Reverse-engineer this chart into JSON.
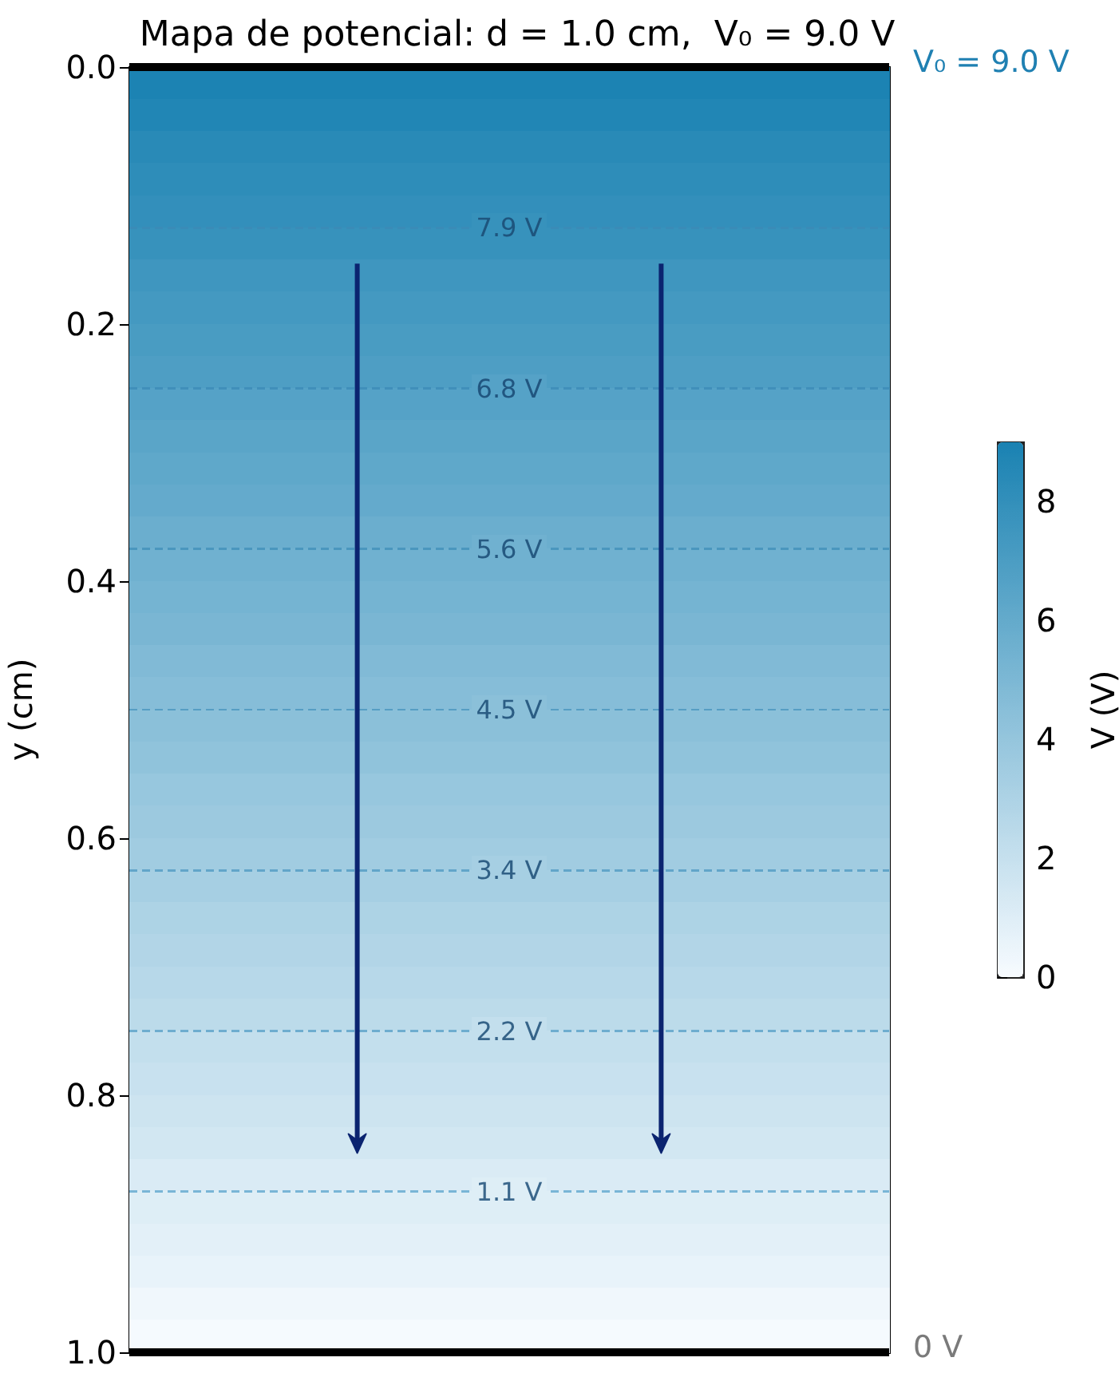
{
  "chart_data": {
    "type": "heatmap",
    "title": "Mapa de potencial: d = 1.0 cm,  V₀ = 9.0 V",
    "ylabel": "y (cm)",
    "clabel": "V (V)",
    "categories": [
      null
    ],
    "cells": [
      [
        8.9
      ],
      [
        8.7
      ],
      [
        8.4
      ],
      [
        8.2
      ],
      [
        8.0
      ],
      [
        7.8
      ],
      [
        7.5
      ],
      [
        7.3
      ],
      [
        7.1
      ],
      [
        6.9
      ],
      [
        6.6
      ],
      [
        6.4
      ],
      [
        6.2
      ],
      [
        6.0
      ],
      [
        5.7
      ],
      [
        5.5
      ],
      [
        5.3
      ],
      [
        5.1
      ],
      [
        4.8
      ],
      [
        4.6
      ],
      [
        4.4
      ],
      [
        4.2
      ],
      [
        3.9
      ],
      [
        3.7
      ],
      [
        3.5
      ],
      [
        3.3
      ],
      [
        3.0
      ],
      [
        2.8
      ],
      [
        2.6
      ],
      [
        2.4
      ],
      [
        2.1
      ],
      [
        1.9
      ],
      [
        1.7
      ],
      [
        1.5
      ],
      [
        1.2
      ],
      [
        1.0
      ],
      [
        0.8
      ],
      [
        0.6
      ],
      [
        0.3
      ],
      [
        0.1
      ]
    ],
    "clim": [
      0,
      9
    ],
    "cticks": [
      0,
      2,
      4,
      6,
      8
    ],
    "ylim": [
      1,
      0
    ],
    "yticks": [
      {
        "value": 0,
        "label": "0.0"
      },
      0.2,
      0.4,
      0.6,
      0.8,
      {
        "value": 1,
        "label": "1.0"
      }
    ],
    "ref_lines": [
      {
        "axis": "y",
        "value": 0,
        "color": "#000000",
        "line_style": "solid"
      },
      {
        "axis": "y",
        "value": 1,
        "color": "#000000",
        "line_style": "solid"
      },
      {
        "axis": "y",
        "value": 0.125,
        "label": "7.9 V",
        "color": "#3a8bb7",
        "line_style": "dashed"
      },
      {
        "axis": "y",
        "value": 0.25,
        "label": "6.8 V",
        "color": "#408fba",
        "line_style": "dashed"
      },
      {
        "axis": "y",
        "value": 0.375,
        "label": "5.6 V",
        "color": "#4a96be",
        "line_style": "dashed"
      },
      {
        "axis": "y",
        "value": 0.5,
        "label": "4.5 V",
        "color": "#569ec4",
        "line_style": "dashed"
      },
      {
        "axis": "y",
        "value": 0.625,
        "label": "3.4 V",
        "color": "#62a5c9",
        "line_style": "dashed"
      },
      {
        "axis": "y",
        "value": 0.75,
        "label": "2.2 V",
        "color": "#6eadcf",
        "line_style": "dashed"
      },
      {
        "axis": "y",
        "value": 0.875,
        "label": "1.1 V",
        "color": "#79b5d6",
        "line_style": "dashed"
      }
    ],
    "annotations": [
      "V₀ = 9.0 V",
      "0 V"
    ],
    "grid": false
  }
}
